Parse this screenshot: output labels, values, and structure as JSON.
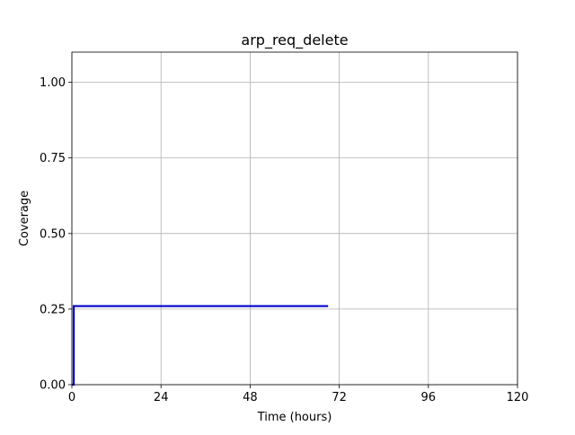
{
  "chart_data": {
    "type": "line",
    "title": "arp_req_delete",
    "xlabel": "Time (hours)",
    "ylabel": "Coverage",
    "xlim": [
      0,
      120
    ],
    "ylim": [
      0,
      1.1
    ],
    "xticks": [
      0,
      24,
      48,
      72,
      96,
      120
    ],
    "xtick_labels": [
      "0",
      "24",
      "48",
      "72",
      "96",
      "120"
    ],
    "yticks": [
      0.0,
      0.25,
      0.5,
      0.75,
      1.0
    ],
    "ytick_labels": [
      "0.00",
      "0.25",
      "0.50",
      "0.75",
      "1.00"
    ],
    "grid": true,
    "legend": "none",
    "series": [
      {
        "color": "#0000cc",
        "step": "post",
        "x": [
          0,
          0.5,
          69
        ],
        "y": [
          0.0,
          0.26,
          0.26
        ]
      }
    ]
  }
}
